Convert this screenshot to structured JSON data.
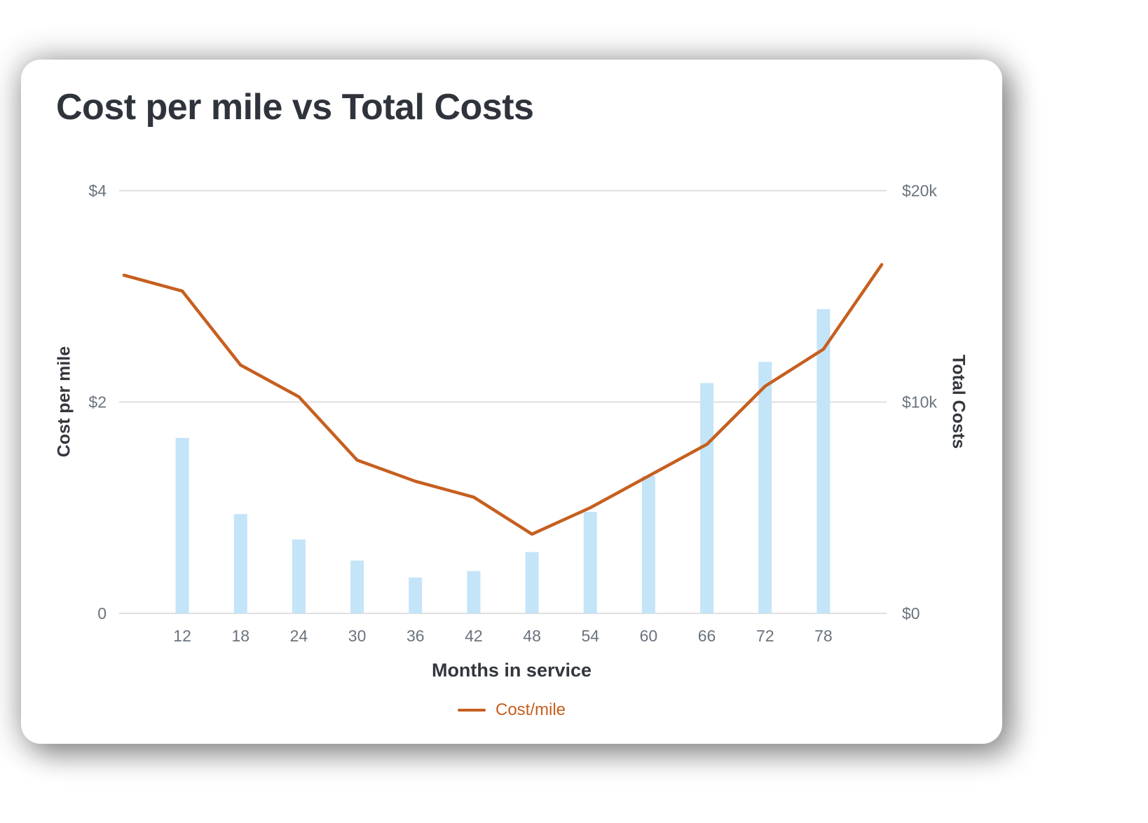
{
  "chart_data": {
    "type": "combo",
    "title": "Cost per mile vs Total Costs",
    "x_title": "Months in service",
    "x_domain": [
      5.5,
      84.5
    ],
    "x_ticks": [
      12,
      18,
      24,
      30,
      36,
      42,
      48,
      54,
      60,
      66,
      72,
      78
    ],
    "y_left": {
      "title": "Cost per mile",
      "range": [
        0,
        4
      ],
      "ticks": [
        {
          "v": 0,
          "label": "0",
          "grid": true
        },
        {
          "v": 2,
          "label": "$2",
          "grid": true
        },
        {
          "v": 4,
          "label": "$4",
          "grid": true
        }
      ]
    },
    "y_right": {
      "title": "Total Costs",
      "range": [
        0,
        20000
      ],
      "ticks": [
        {
          "v": 0,
          "label": "$0"
        },
        {
          "v": 10000,
          "label": "$10k"
        },
        {
          "v": 20000,
          "label": "$20k"
        }
      ]
    },
    "series": [
      {
        "name": "Total Costs",
        "type": "bar",
        "axis": "right",
        "color": "#c4e4f8",
        "categories": [
          12,
          18,
          24,
          30,
          36,
          42,
          48,
          54,
          60,
          66,
          72,
          78
        ],
        "values": [
          8300,
          4700,
          3500,
          2500,
          1700,
          2000,
          2900,
          4800,
          6500,
          10900,
          11900,
          14400
        ]
      },
      {
        "name": "Cost/mile",
        "type": "line",
        "axis": "left",
        "color": "#c65f1f",
        "x": [
          6,
          12,
          18,
          24,
          30,
          36,
          42,
          48,
          54,
          60,
          66,
          72,
          78,
          84
        ],
        "values": [
          3.2,
          3.05,
          2.35,
          2.05,
          1.45,
          1.25,
          1.1,
          0.75,
          1.0,
          1.3,
          1.6,
          2.15,
          2.5,
          3.3
        ]
      }
    ],
    "legend": [
      {
        "label": "Cost/mile",
        "color": "#c65f1f"
      }
    ],
    "colors": {
      "grid": "#d6d6d6",
      "tick_text": "#6a737d",
      "axis_title_text": "#33373d",
      "title_text": "#2f333b",
      "card_background": "#ffffff"
    },
    "layout_hints": {
      "grid": "horizontal only",
      "legend_position": "bottom center"
    }
  }
}
